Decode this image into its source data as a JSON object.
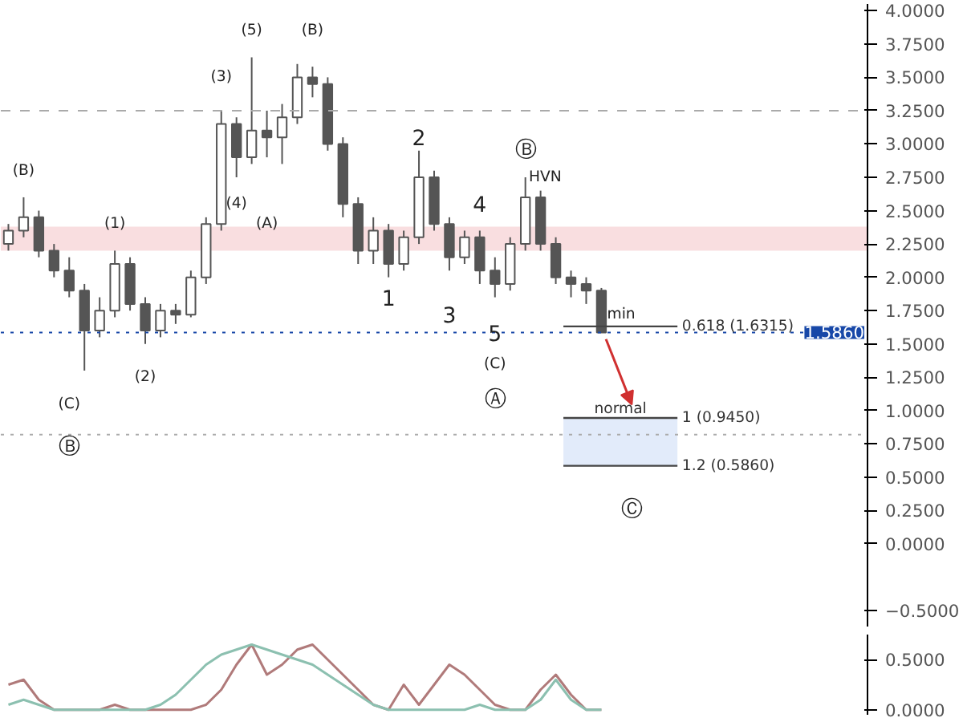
{
  "chart_data": [
    {
      "type": "candlestick",
      "categories": [
        null,
        null,
        null,
        null,
        null,
        null,
        null,
        null,
        null,
        null,
        null,
        null,
        null,
        null,
        null,
        null,
        null,
        null,
        null,
        null,
        null,
        null,
        null,
        null,
        null,
        null,
        null,
        null,
        null,
        null,
        null,
        null,
        null,
        null,
        null,
        null,
        null,
        null,
        null,
        null,
        null,
        null,
        null,
        null,
        null,
        null,
        null,
        null,
        null,
        null,
        null,
        null,
        null,
        null,
        null,
        null,
        null
      ],
      "ohlc": [
        [
          2.25,
          2.4,
          2.2,
          2.35
        ],
        [
          2.35,
          2.6,
          2.3,
          2.45
        ],
        [
          2.45,
          2.5,
          2.15,
          2.2
        ],
        [
          2.2,
          2.25,
          2.0,
          2.05
        ],
        [
          2.05,
          2.15,
          1.85,
          1.9
        ],
        [
          1.9,
          1.95,
          1.3,
          1.6
        ],
        [
          1.6,
          1.85,
          1.55,
          1.75
        ],
        [
          1.75,
          2.2,
          1.7,
          2.1
        ],
        [
          2.1,
          2.15,
          1.75,
          1.8
        ],
        [
          1.8,
          1.85,
          1.5,
          1.6
        ],
        [
          1.6,
          1.8,
          1.55,
          1.75
        ],
        [
          1.75,
          1.8,
          1.65,
          1.72
        ],
        [
          1.72,
          2.05,
          1.7,
          2.0
        ],
        [
          2.0,
          2.45,
          1.95,
          2.4
        ],
        [
          2.4,
          3.25,
          2.35,
          3.15
        ],
        [
          3.15,
          3.2,
          2.75,
          2.9
        ],
        [
          2.9,
          3.65,
          2.85,
          3.1
        ],
        [
          3.1,
          3.25,
          2.9,
          3.05
        ],
        [
          3.05,
          3.3,
          2.85,
          3.2
        ],
        [
          3.2,
          3.6,
          3.15,
          3.5
        ],
        [
          3.5,
          3.58,
          3.35,
          3.45
        ],
        [
          3.45,
          3.5,
          2.95,
          3.0
        ],
        [
          3.0,
          3.05,
          2.45,
          2.55
        ],
        [
          2.55,
          2.6,
          2.1,
          2.2
        ],
        [
          2.2,
          2.45,
          2.1,
          2.35
        ],
        [
          2.35,
          2.4,
          2.0,
          2.1
        ],
        [
          2.1,
          2.35,
          2.05,
          2.3
        ],
        [
          2.3,
          2.95,
          2.25,
          2.75
        ],
        [
          2.75,
          2.8,
          2.35,
          2.4
        ],
        [
          2.4,
          2.45,
          2.05,
          2.15
        ],
        [
          2.15,
          2.35,
          2.1,
          2.3
        ],
        [
          2.3,
          2.35,
          1.95,
          2.05
        ],
        [
          2.05,
          2.15,
          1.85,
          1.95
        ],
        [
          1.95,
          2.3,
          1.9,
          2.25
        ],
        [
          2.25,
          2.75,
          2.2,
          2.6
        ],
        [
          2.6,
          2.65,
          2.2,
          2.25
        ],
        [
          2.25,
          2.3,
          1.95,
          2.0
        ],
        [
          2.0,
          2.05,
          1.85,
          1.95
        ],
        [
          1.95,
          2.0,
          1.8,
          1.9
        ],
        [
          1.9,
          1.92,
          1.586,
          1.586
        ],
        null,
        null,
        null,
        null,
        null,
        null,
        null,
        null,
        null,
        null,
        null,
        null,
        null,
        null,
        null,
        null,
        null
      ],
      "color": "#555555",
      "ylim": [
        -0.62,
        4.05
      ],
      "yticks": [
        {
          "value": -0.5,
          "label": "−0.5000"
        },
        {
          "value": 0,
          "label": "0.0000"
        },
        {
          "value": 0.25,
          "label": "0.2500"
        },
        {
          "value": 0.5,
          "label": "0.5000"
        },
        {
          "value": 0.75,
          "label": "0.7500"
        },
        {
          "value": 1,
          "label": "1.0000"
        },
        {
          "value": 1.25,
          "label": "1.2500"
        },
        {
          "value": 1.5,
          "label": "1.5000"
        },
        {
          "value": 1.75,
          "label": "1.7500"
        },
        {
          "value": 2,
          "label": "2.0000"
        },
        {
          "value": 2.25,
          "label": "2.2500"
        },
        {
          "value": 2.5,
          "label": "2.5000"
        },
        {
          "value": 2.75,
          "label": "2.7500"
        },
        {
          "value": 3,
          "label": "3.0000"
        },
        {
          "value": 3.25,
          "label": "3.2500"
        },
        {
          "value": 3.5,
          "label": "3.5000"
        },
        {
          "value": 3.75,
          "label": "3.7500"
        },
        {
          "value": 4,
          "label": "4.0000"
        }
      ],
      "tick_labels": "y",
      "grid": false,
      "ref_lines": [
        {
          "axis": "y",
          "value": 3.25,
          "color": "#aaaaaa",
          "line_style": "dashed"
        },
        {
          "axis": "y",
          "value": 0.82,
          "color": "#aaaaaa",
          "line_style": "dotted"
        },
        {
          "axis": "y",
          "value": 1.586,
          "label": "1.5860",
          "color": "#1848a8",
          "line_style": "dotted"
        },
        {
          "axis": "y",
          "value": 1.6315,
          "label": "0.618 (1.6315)",
          "color": "#444444",
          "line_style": "solid"
        },
        {
          "axis": "y",
          "value": 0.945,
          "label": "1 (0.9450)",
          "color": "#444444",
          "line_style": "solid"
        },
        {
          "axis": "y",
          "value": 0.586,
          "label": "1.2 (0.5860)",
          "color": "#444444",
          "line_style": "solid"
        }
      ],
      "bands": [
        {
          "axis": "y",
          "from": 2.2,
          "to": 2.38,
          "color": "#f7d6d8"
        },
        {
          "axis": "y",
          "from": 0.586,
          "to": 0.945,
          "label": "normal",
          "color": "#dbe6f9"
        }
      ],
      "annotations": [
        "(B)",
        "(1)",
        "(C)",
        "Ⓑ",
        "(2)",
        "(3)",
        "(4)",
        "(A)",
        "(5)",
        "(B)",
        "2",
        "1",
        "4",
        "3",
        "5",
        "(C)",
        "Ⓐ",
        "Ⓑ",
        "Ⓒ",
        "HVN",
        "min"
      ]
    },
    {
      "type": "line",
      "categories": [
        null,
        null,
        null,
        null,
        null,
        null,
        null,
        null,
        null,
        null,
        null,
        null,
        null,
        null,
        null,
        null,
        null,
        null,
        null,
        null,
        null,
        null,
        null,
        null,
        null,
        null,
        null,
        null,
        null,
        null,
        null,
        null,
        null,
        null,
        null,
        null,
        null,
        null,
        null,
        null,
        null,
        null,
        null,
        null,
        null,
        null,
        null,
        null,
        null,
        null,
        null,
        null,
        null,
        null,
        null,
        null,
        null
      ],
      "series": [
        {
          "color": "#b07a7a",
          "values": [
            0.25,
            0.3,
            0.1,
            0,
            0,
            0,
            0,
            0.05,
            0,
            0,
            0,
            0,
            0,
            0.05,
            0.2,
            0.45,
            0.65,
            0.35,
            0.45,
            0.6,
            0.65,
            0.5,
            0.35,
            0.2,
            0.05,
            0,
            0.25,
            0.05,
            0.25,
            0.45,
            0.35,
            0.2,
            0.05,
            0,
            0,
            0.2,
            0.35,
            0.15,
            0,
            0,
            null,
            null,
            null,
            null,
            null,
            null,
            null,
            null,
            null,
            null,
            null,
            null,
            null,
            null,
            null,
            null,
            null
          ]
        },
        {
          "color": "#8cc0b0",
          "values": [
            0.05,
            0.1,
            0.05,
            0,
            0,
            0,
            0,
            0,
            0,
            0,
            0.05,
            0.15,
            0.3,
            0.45,
            0.55,
            0.6,
            0.65,
            0.6,
            0.55,
            0.5,
            0.45,
            0.35,
            0.25,
            0.15,
            0.05,
            0,
            0,
            0,
            0,
            0,
            0,
            0.05,
            0,
            0,
            0,
            0.1,
            0.3,
            0.1,
            0,
            0,
            null,
            null,
            null,
            null,
            null,
            null,
            null,
            null,
            null,
            null,
            null,
            null,
            null,
            null,
            null,
            null,
            null
          ]
        }
      ],
      "ylim": [
        -0.05,
        0.75
      ],
      "yticks": [
        {
          "value": 0,
          "label": "0.0000"
        },
        {
          "value": 0.5,
          "label": "0.5000"
        }
      ],
      "tick_labels": "y",
      "grid": false
    }
  ]
}
